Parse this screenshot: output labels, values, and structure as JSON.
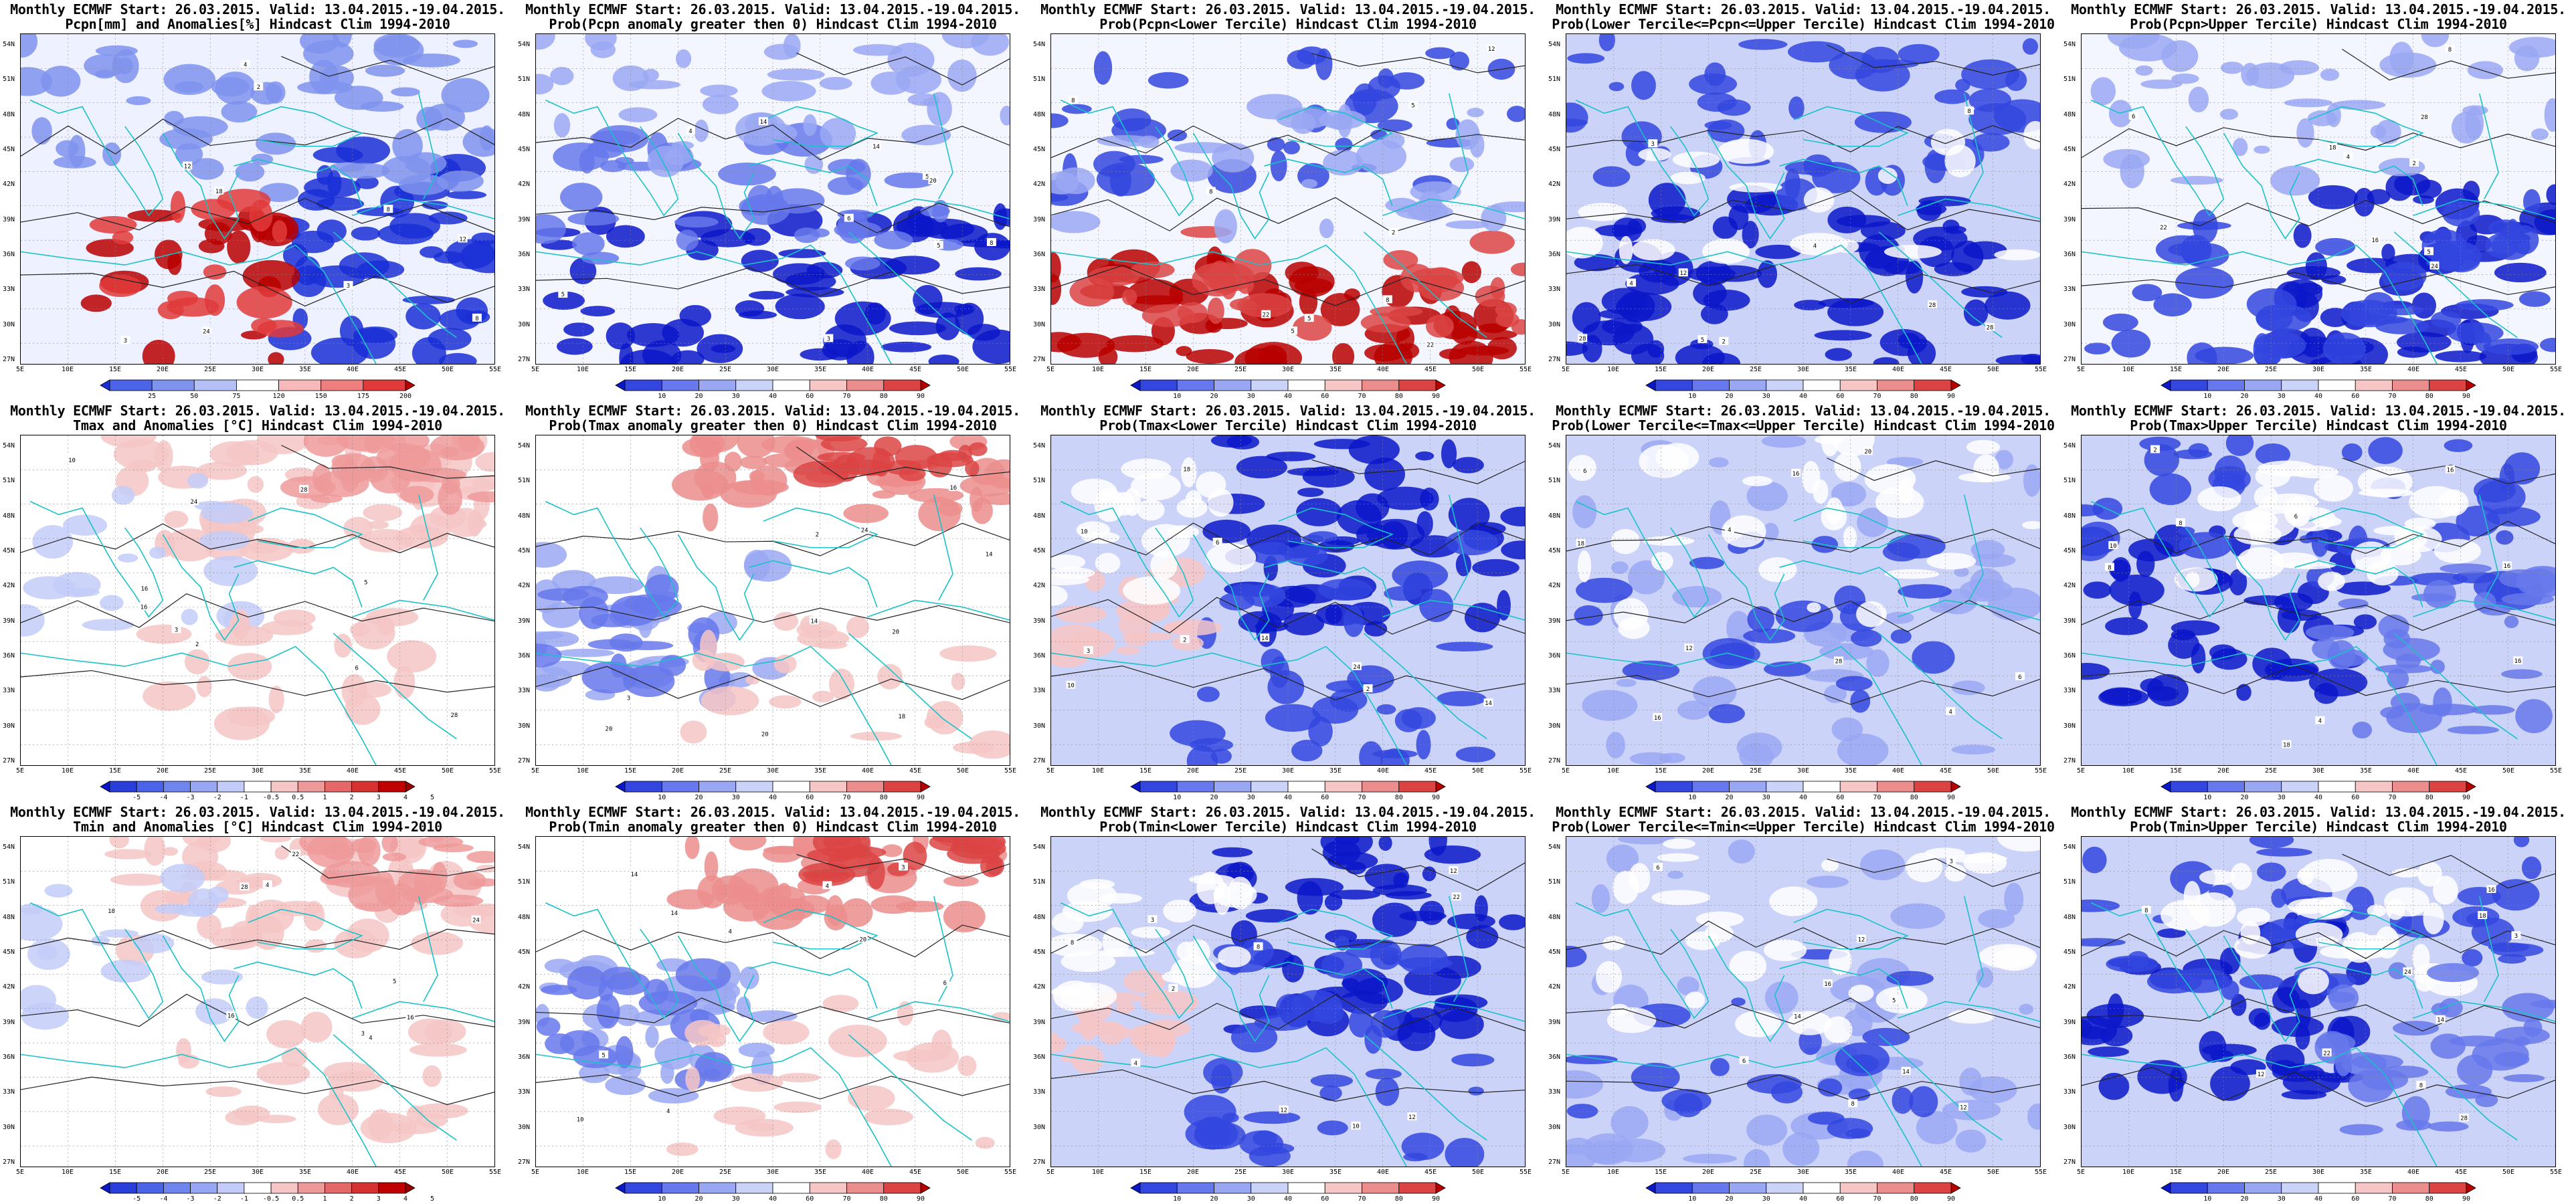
{
  "header_prefix": "Monthly ECMWF Start: 26.03.2015. Valid: 13.04.2015.-19.04.2015.",
  "lat_labels": [
    "54N",
    "51N",
    "48N",
    "45N",
    "42N",
    "39N",
    "36N",
    "33N",
    "30N",
    "27N"
  ],
  "lon_labels": [
    "5E",
    "10E",
    "15E",
    "20E",
    "25E",
    "30E",
    "35E",
    "40E",
    "45E",
    "50E",
    "55E"
  ],
  "colorbars": {
    "pcpn_anom": {
      "labels": [
        "25",
        "50",
        "75",
        "120",
        "150",
        "175",
        "200"
      ],
      "colors": [
        "#1a2fd6",
        "#4b63e6",
        "#7f93ef",
        "#b4c0f6",
        "#ffffff",
        "#f7b9b9",
        "#ef7f7f",
        "#e03a3a",
        "#b80000"
      ]
    },
    "temp_anom": {
      "labels": [
        "-5",
        "-4",
        "-3",
        "-2",
        "-1",
        "-0.5",
        "0.5",
        "1",
        "2",
        "3",
        "4",
        "5"
      ],
      "colors": [
        "#0a18c9",
        "#2a3ed9",
        "#4b63e6",
        "#6f86ee",
        "#97a7f3",
        "#c3ccf8",
        "#ffffff",
        "#f6c6c6",
        "#ef9a9a",
        "#e46868",
        "#d73232",
        "#c00000",
        "#980000"
      ]
    },
    "prob": {
      "labels": [
        "10",
        "20",
        "30",
        "40",
        "60",
        "70",
        "80",
        "90"
      ],
      "colors": [
        "#0a18c9",
        "#3346df",
        "#6678eb",
        "#9aa8f3",
        "#ccd3f9",
        "#ffffff",
        "#f6c6c6",
        "#ec8d8d",
        "#dc4444",
        "#b80000"
      ]
    }
  },
  "rows": [
    {
      "var": "Pcpn",
      "panels": [
        {
          "title2": "Pcpn[mm] and Anomalies[%] Hindcast Clim 1994-2010",
          "cbar": "pcpn_anom",
          "scheme": "pcpn_anom"
        },
        {
          "title2": "Prob(Pcpn anomaly greater then 0) Hindcast Clim 1994-2010",
          "cbar": "prob",
          "scheme": "pcpn_prob"
        },
        {
          "title2": "Prob(Pcpn<Lower Tercile) Hindcast Clim 1994-2010",
          "cbar": "prob",
          "scheme": "pcpn_lower"
        },
        {
          "title2": "Prob(Lower Tercile<=Pcpn<=Upper Tercile) Hindcast Clim 1994-2010",
          "cbar": "prob",
          "scheme": "pcpn_mid"
        },
        {
          "title2": "Prob(Pcpn>Upper Tercile) Hindcast Clim 1994-2010",
          "cbar": "prob",
          "scheme": "pcpn_upper"
        }
      ]
    },
    {
      "var": "Tmax",
      "panels": [
        {
          "title2": "Tmax and Anomalies [°C] Hindcast Clim 1994-2010",
          "cbar": "temp_anom",
          "scheme": "t_anom"
        },
        {
          "title2": "Prob(Tmax anomaly greater then 0) Hindcast Clim 1994-2010",
          "cbar": "prob",
          "scheme": "t_prob"
        },
        {
          "title2": "Prob(Tmax<Lower Tercile) Hindcast Clim 1994-2010",
          "cbar": "prob",
          "scheme": "t_lower"
        },
        {
          "title2": "Prob(Lower Tercile<=Tmax<=Upper Tercile) Hindcast Clim 1994-2010",
          "cbar": "prob",
          "scheme": "t_mid"
        },
        {
          "title2": "Prob(Tmax>Upper Tercile) Hindcast Clim 1994-2010",
          "cbar": "prob",
          "scheme": "t_upper"
        }
      ]
    },
    {
      "var": "Tmin",
      "panels": [
        {
          "title2": "Tmin and Anomalies [°C] Hindcast Clim 1994-2010",
          "cbar": "temp_anom",
          "scheme": "t_anom"
        },
        {
          "title2": "Prob(Tmin anomaly greater then 0) Hindcast Clim 1994-2010",
          "cbar": "prob",
          "scheme": "t_prob"
        },
        {
          "title2": "Prob(Tmin<Lower Tercile) Hindcast Clim 1994-2010",
          "cbar": "prob",
          "scheme": "t_lower"
        },
        {
          "title2": "Prob(Lower Tercile<=Tmin<=Upper Tercile) Hindcast Clim 1994-2010",
          "cbar": "prob",
          "scheme": "t_mid"
        },
        {
          "title2": "Prob(Tmin>Upper Tercile) Hindcast Clim 1994-2010",
          "cbar": "prob",
          "scheme": "t_upper"
        }
      ]
    }
  ],
  "contour_labels": [
    "2",
    "3",
    "4",
    "5",
    "6",
    "8",
    "10",
    "12",
    "14",
    "16",
    "18",
    "20",
    "22",
    "24",
    "28"
  ]
}
